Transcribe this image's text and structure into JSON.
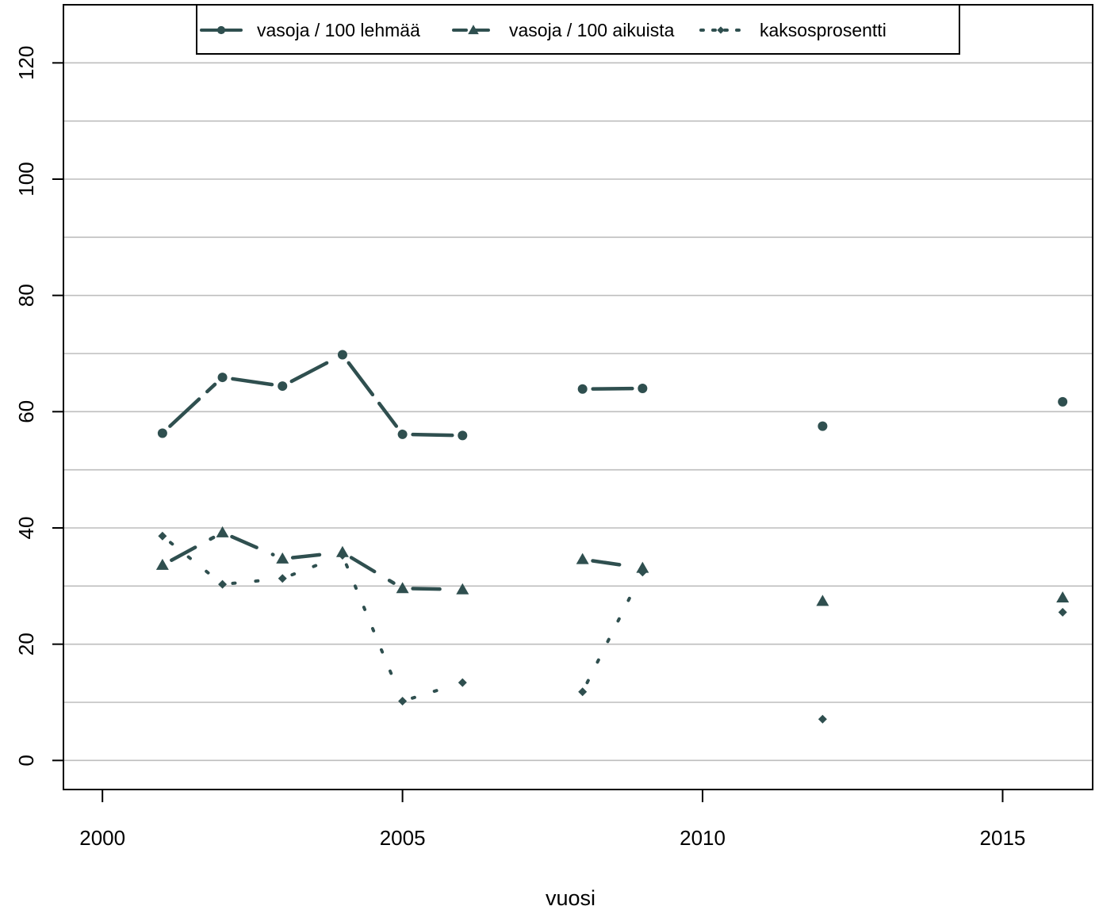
{
  "chart_data": {
    "type": "line",
    "xlabel": "vuosi",
    "ylabel": "",
    "xlim": [
      1999.35,
      2016.5
    ],
    "ylim": [
      -5,
      130
    ],
    "xticks": [
      2000,
      2005,
      2010,
      2015
    ],
    "yticks": [
      0,
      20,
      40,
      60,
      80,
      100,
      120
    ],
    "ygrid": [
      0,
      10,
      20,
      30,
      40,
      50,
      60,
      70,
      80,
      90,
      100,
      110,
      120
    ],
    "grid": "horizontal",
    "legend_position": "top",
    "color": "#2f4f4f",
    "series": [
      {
        "name": "vasoja / 100 lehmää",
        "marker": "circle",
        "line": "solid",
        "x": [
          2001,
          2002,
          2003,
          2004,
          2005,
          2006,
          2007,
          2008,
          2009,
          2010,
          2011,
          2012,
          2013,
          2014,
          2015,
          2016
        ],
        "y": [
          56.3,
          65.9,
          64.4,
          69.8,
          56.1,
          55.9,
          null,
          63.9,
          64.0,
          null,
          null,
          57.5,
          null,
          null,
          null,
          61.7
        ]
      },
      {
        "name": "vasoja / 100 aikuista",
        "marker": "triangle",
        "line": "dashed",
        "x": [
          2001,
          2002,
          2003,
          2004,
          2005,
          2006,
          2007,
          2008,
          2009,
          2010,
          2011,
          2012,
          2013,
          2014,
          2015,
          2016
        ],
        "y": [
          33.6,
          39.2,
          34.7,
          35.8,
          29.6,
          29.4,
          null,
          34.6,
          33.1,
          null,
          null,
          27.4,
          null,
          null,
          null,
          28.0
        ]
      },
      {
        "name": "kaksosprosentti",
        "marker": "diamond",
        "line": "dotted",
        "x": [
          2001,
          2002,
          2003,
          2004,
          2005,
          2006,
          2007,
          2008,
          2009,
          2010,
          2011,
          2012,
          2013,
          2014,
          2015,
          2016
        ],
        "y": [
          38.6,
          30.3,
          31.3,
          35.3,
          10.2,
          13.4,
          null,
          11.8,
          32.4,
          null,
          null,
          7.1,
          null,
          null,
          null,
          25.5
        ]
      }
    ]
  }
}
